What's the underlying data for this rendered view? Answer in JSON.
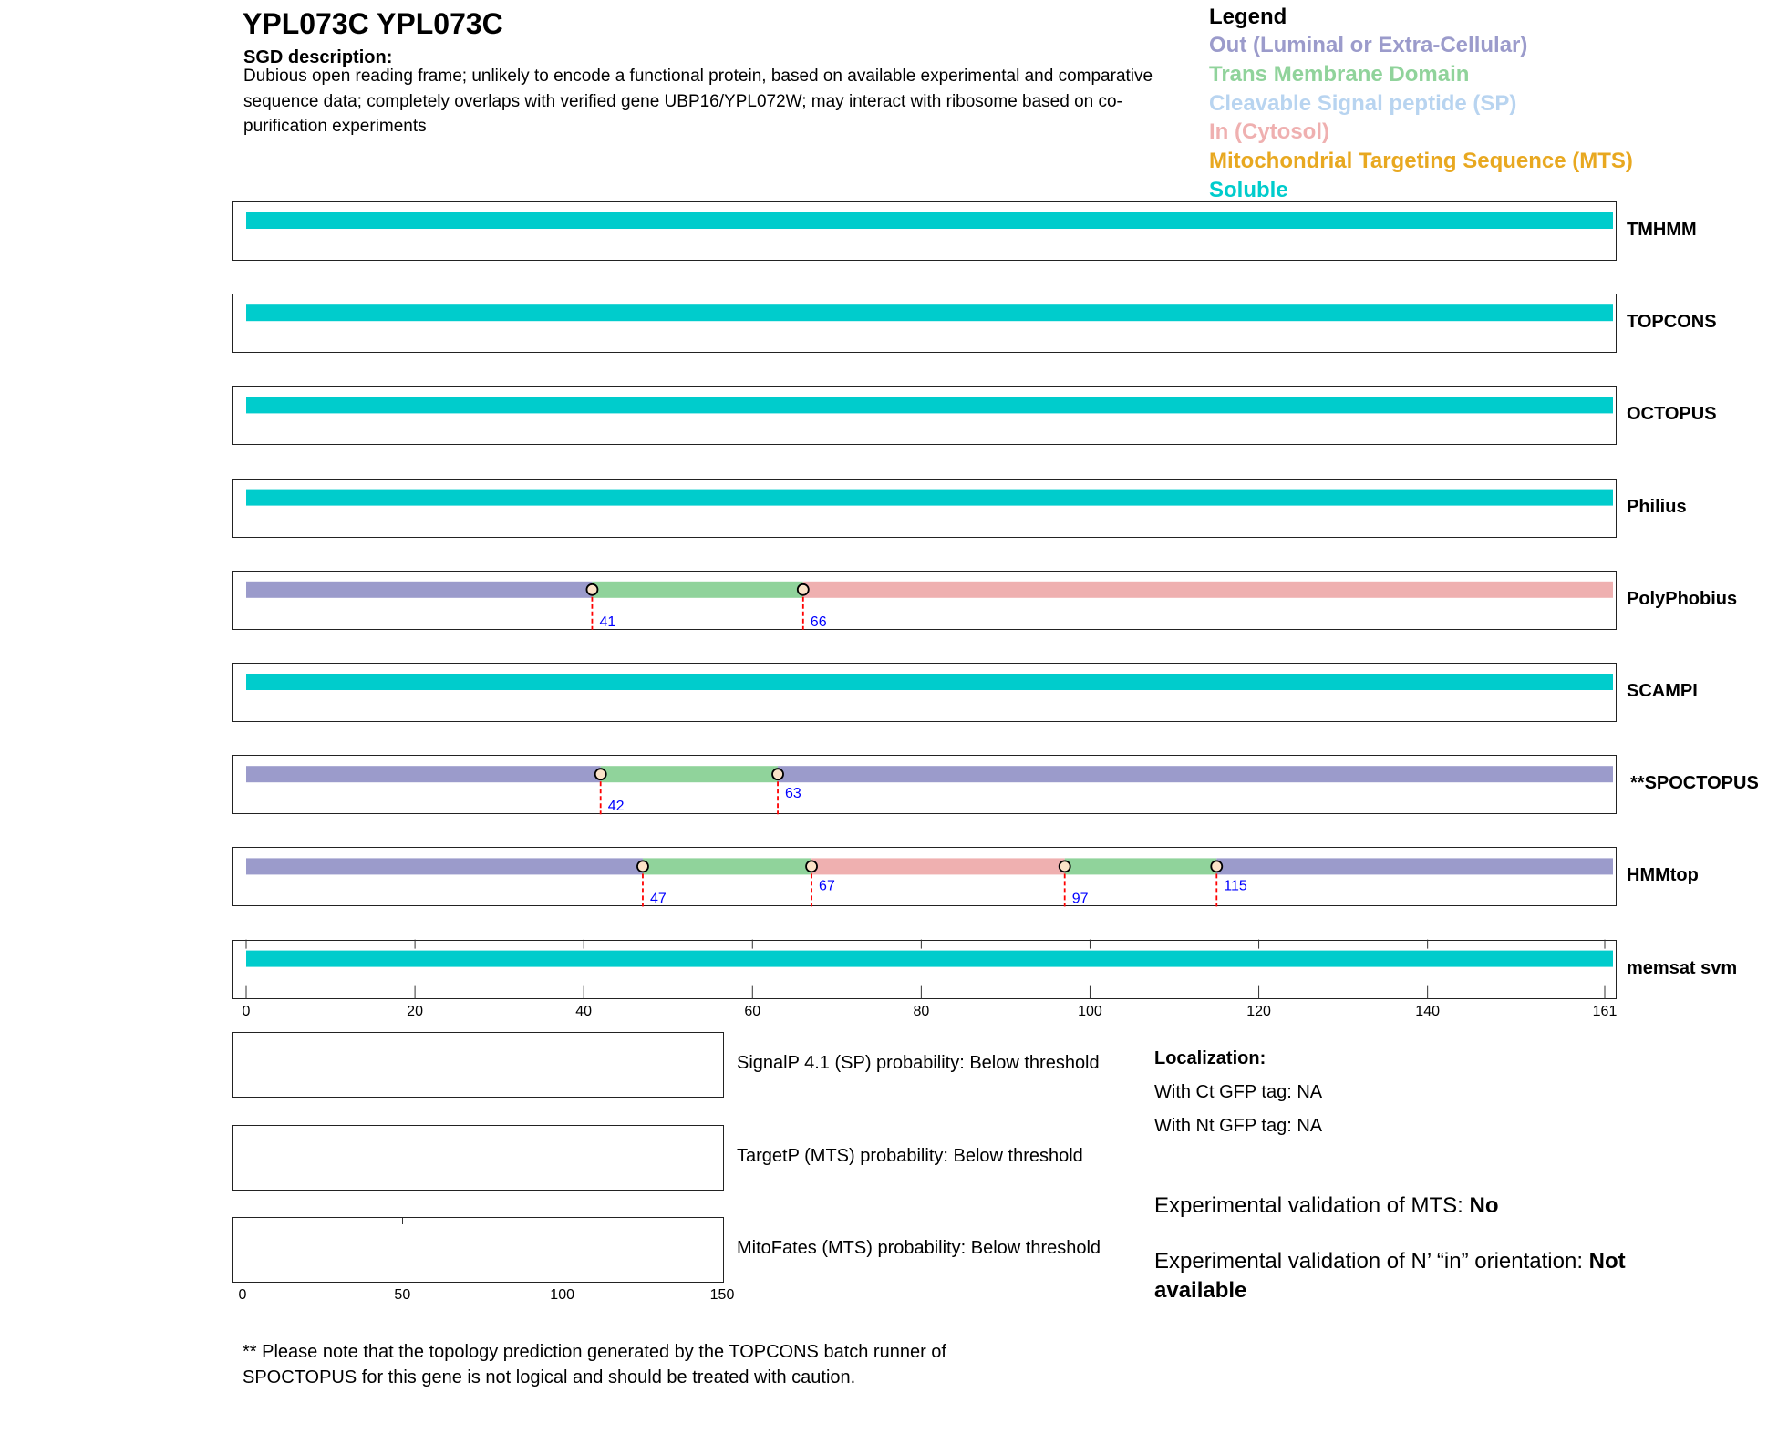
{
  "title": "YPL073C  YPL073C",
  "sgd_heading": "SGD description:",
  "sgd_text": "Dubious open reading frame; unlikely to encode a functional protein, based on available experimental and comparative sequence data; completely overlaps with verified gene UBP16/YPL072W; may interact with ribosome based on co-purification experiments",
  "legend": {
    "title": "Legend",
    "items": [
      {
        "label": "Out (Luminal or Extra-Cellular)",
        "color": "#9b9bcb"
      },
      {
        "label": "Trans Membrane Domain",
        "color": "#90d39b"
      },
      {
        "label": "Cleavable Signal peptide (SP)",
        "color": "#b8d4f0"
      },
      {
        "label": "In (Cytosol)",
        "color": "#efb0b0"
      },
      {
        "label": "Mitochondrial Targeting Sequence (MTS)",
        "color": "#e8a820"
      },
      {
        "label": "Soluble",
        "color": "#00cccc"
      }
    ]
  },
  "sequence_length": 161,
  "tracks": [
    {
      "name": "TMHMM",
      "segments": [
        {
          "start": 0,
          "end": 162,
          "type": "Soluble"
        }
      ],
      "boundaries": []
    },
    {
      "name": "TOPCONS",
      "segments": [
        {
          "start": 0,
          "end": 162,
          "type": "Soluble"
        }
      ],
      "boundaries": []
    },
    {
      "name": "OCTOPUS",
      "segments": [
        {
          "start": 0,
          "end": 162,
          "type": "Soluble"
        }
      ],
      "boundaries": []
    },
    {
      "name": "Philius",
      "segments": [
        {
          "start": 0,
          "end": 162,
          "type": "Soluble"
        }
      ],
      "boundaries": []
    },
    {
      "name": "PolyPhobius",
      "segments": [
        {
          "start": 0,
          "end": 41,
          "type": "Out (Luminal or Extra-Cellular)"
        },
        {
          "start": 41,
          "end": 66,
          "type": "Trans Membrane Domain"
        },
        {
          "start": 66,
          "end": 162,
          "type": "In (Cytosol)"
        }
      ],
      "boundaries": [
        41,
        66
      ]
    },
    {
      "name": "SCAMPI",
      "segments": [
        {
          "start": 0,
          "end": 162,
          "type": "Soluble"
        }
      ],
      "boundaries": []
    },
    {
      "name": "**SPOCTOPUS",
      "segments": [
        {
          "start": 0,
          "end": 42,
          "type": "Out (Luminal or Extra-Cellular)"
        },
        {
          "start": 42,
          "end": 63,
          "type": "Trans Membrane Domain"
        },
        {
          "start": 63,
          "end": 162,
          "type": "Out (Luminal or Extra-Cellular)"
        }
      ],
      "boundaries": [
        42,
        63
      ]
    },
    {
      "name": "HMMtop",
      "segments": [
        {
          "start": 0,
          "end": 47,
          "type": "Out (Luminal or Extra-Cellular)"
        },
        {
          "start": 47,
          "end": 67,
          "type": "Trans Membrane Domain"
        },
        {
          "start": 67,
          "end": 97,
          "type": "In (Cytosol)"
        },
        {
          "start": 97,
          "end": 115,
          "type": "Trans Membrane Domain"
        },
        {
          "start": 115,
          "end": 162,
          "type": "Out (Luminal or Extra-Cellular)"
        }
      ],
      "boundaries": [
        47,
        67,
        97,
        115
      ]
    },
    {
      "name": "memsat svm",
      "segments": [
        {
          "start": 0,
          "end": 162,
          "type": "Soluble"
        }
      ],
      "boundaries": []
    }
  ],
  "axis_ticks": [
    "0",
    "20",
    "40",
    "60",
    "80",
    "100",
    "120",
    "140",
    "161"
  ],
  "prob_axis_ticks": [
    "0",
    "50",
    "100",
    "150"
  ],
  "probabilities": [
    {
      "label": "SignalP 4.1 (SP) probability: Below threshold"
    },
    {
      "label": "TargetP (MTS) probability: Below threshold"
    },
    {
      "label": "MitoFates (MTS) probability: Below threshold"
    }
  ],
  "localization": {
    "heading": "Localization:",
    "ct": "With Ct GFP tag: NA",
    "nt": "With Nt GFP tag: NA"
  },
  "validation": {
    "mts_label": "Experimental validation of MTS: ",
    "mts_value": "No",
    "orient_label": "Experimental validation of N’ “in” orientation: ",
    "orient_value": "Not available"
  },
  "footnote": "** Please note that the topology prediction generated by the TOPCONS batch runner of SPOCTOPUS for this gene is not logical and should be treated with caution."
}
